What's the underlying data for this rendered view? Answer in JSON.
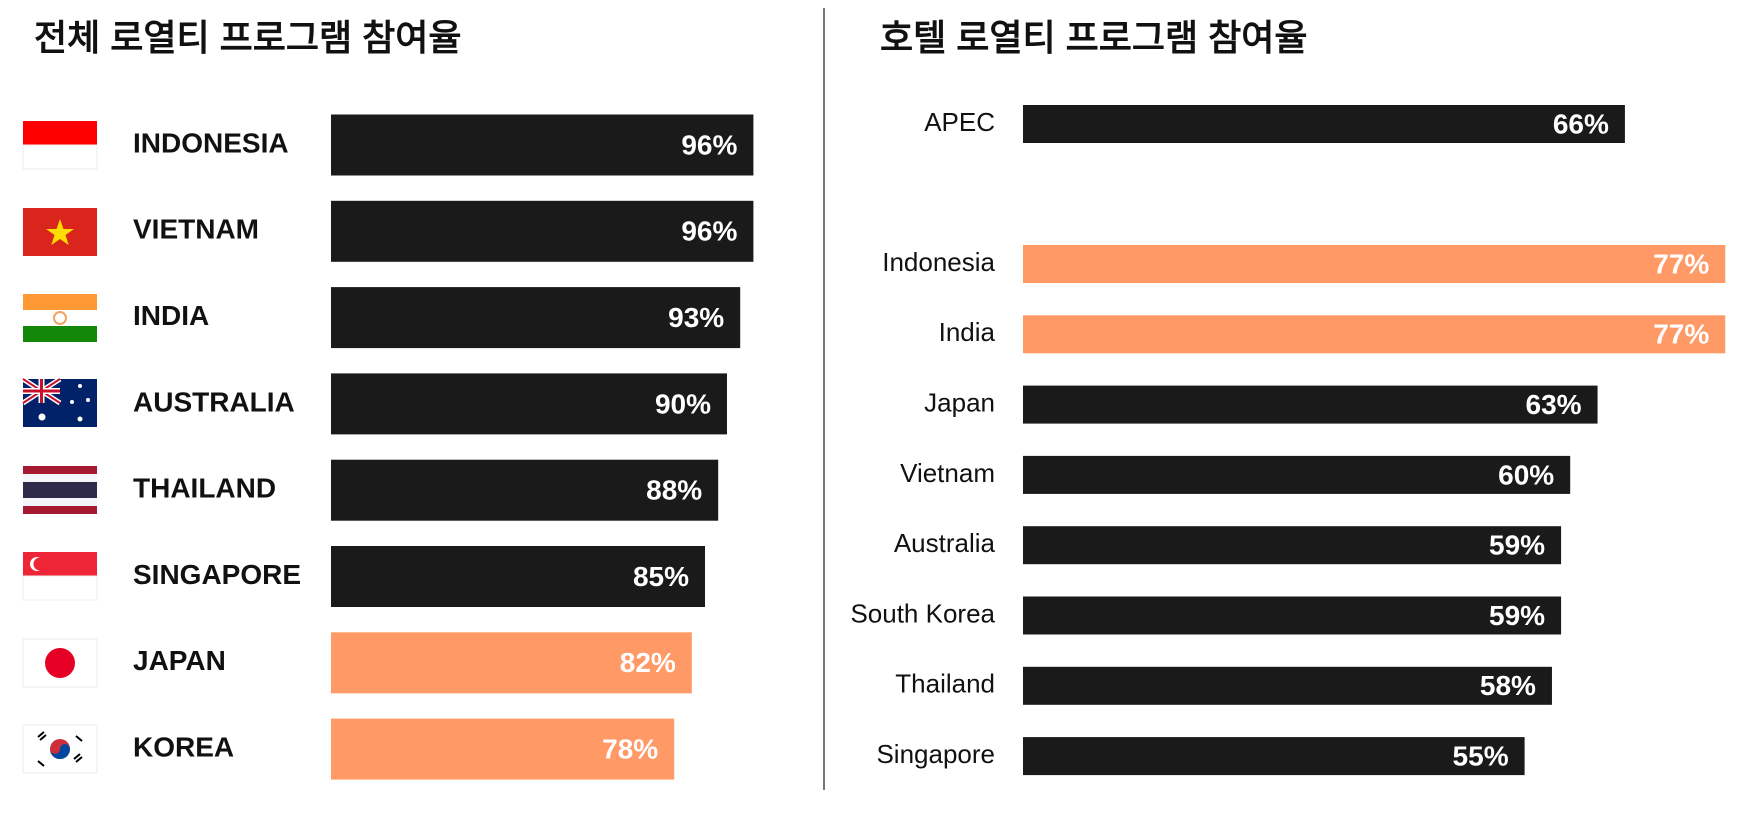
{
  "chart_data": [
    {
      "type": "bar",
      "title": "전체 로열티 프로그램 참여율",
      "categories": [
        "INDONESIA",
        "VIETNAM",
        "INDIA",
        "AUSTRALIA",
        "THAILAND",
        "SINGAPORE",
        "JAPAN",
        "KOREA"
      ],
      "values": [
        96,
        96,
        93,
        90,
        88,
        85,
        82,
        78
      ],
      "value_labels": [
        "96%",
        "96%",
        "93%",
        "90%",
        "88%",
        "85%",
        "82%",
        "78%"
      ],
      "colors": [
        "#1a1a1a",
        "#1a1a1a",
        "#1a1a1a",
        "#1a1a1a",
        "#1a1a1a",
        "#1a1a1a",
        "#ff9966",
        "#ff9966"
      ]
    },
    {
      "type": "bar",
      "title": "호텔 로열티 프로그램 참여율",
      "categories": [
        "APEC",
        "Indonesia",
        "India",
        "Japan",
        "Vietnam",
        "Australia",
        "South Korea",
        "Thailand",
        "Singapore"
      ],
      "values": [
        66,
        77,
        77,
        63,
        60,
        59,
        59,
        58,
        55
      ],
      "value_labels": [
        "66%",
        "77%",
        "77%",
        "63%",
        "60%",
        "59%",
        "59%",
        "58%",
        "55%"
      ],
      "colors": [
        "#1a1a1a",
        "#ff9966",
        "#ff9966",
        "#1a1a1a",
        "#1a1a1a",
        "#1a1a1a",
        "#1a1a1a",
        "#1a1a1a",
        "#1a1a1a"
      ]
    }
  ]
}
